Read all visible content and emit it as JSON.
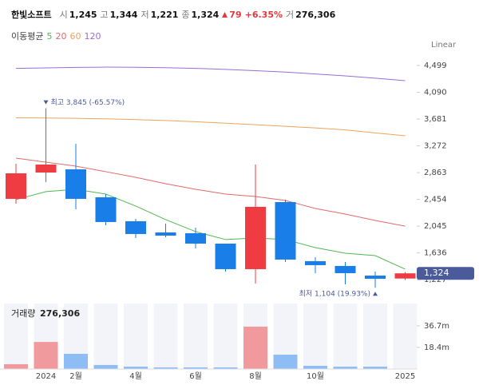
{
  "chart_data": {
    "type": "candlestick",
    "title": "한빛소프트",
    "header_fields": [
      {
        "label": "시",
        "value": "1,245"
      },
      {
        "label": "고",
        "value": "1,344"
      },
      {
        "label": "저",
        "value": "1,221"
      },
      {
        "label": "종",
        "value": "1,324"
      }
    ],
    "change": "79",
    "change_pct": "+6.35%",
    "volume_field": {
      "label": "거",
      "value": "276,306"
    },
    "ma_label": "이동평균",
    "scale_label": "Linear",
    "categories": [
      null,
      "2024",
      "2월",
      null,
      "4월",
      null,
      "6월",
      null,
      "8월",
      null,
      "10월",
      null,
      null,
      "2025"
    ],
    "open": [
      2462,
      2864,
      2913,
      2486,
      2120,
      1949,
      1937,
      1778,
      1388,
      2413,
      1510,
      1437,
      1290,
      1245
    ],
    "high": [
      2998,
      3845,
      3303,
      2535,
      2157,
      2084,
      2022,
      1778,
      2986,
      2449,
      1571,
      1498,
      1351,
      1344
    ],
    "low": [
      2388,
      2718,
      2303,
      2059,
      1864,
      1876,
      1705,
      1351,
      1168,
      1498,
      1327,
      1156,
      1104,
      1221
    ],
    "close": [
      2852,
      2986,
      2462,
      2108,
      1925,
      1900,
      1778,
      1388,
      2340,
      1534,
      1449,
      1327,
      1241,
      1324
    ],
    "up_color": "#ef3b42",
    "down_color": "#1a7ee8",
    "series": [
      {
        "name": "5",
        "color": "#4fb84f",
        "values": [
          2450,
          2572,
          2608,
          2535,
          2352,
          2145,
          1962,
          1840,
          1864,
          1840,
          1717,
          1632,
          1595,
          1388
        ]
      },
      {
        "name": "20",
        "color": "#e26a6a",
        "values": [
          3084,
          3023,
          2962,
          2877,
          2791,
          2693,
          2608,
          2535,
          2498,
          2437,
          2315,
          2230,
          2132,
          2045
        ]
      },
      {
        "name": "60",
        "color": "#f0a35a",
        "values": [
          3700,
          3697,
          3692,
          3684,
          3672,
          3658,
          3640,
          3618,
          3594,
          3570,
          3545,
          3515,
          3470,
          3425
        ]
      },
      {
        "name": "120",
        "color": "#9b6bd6",
        "values": [
          4455,
          4462,
          4470,
          4474,
          4472,
          4466,
          4455,
          4440,
          4420,
          4398,
          4370,
          4340,
          4305,
          4267
        ]
      }
    ],
    "ylim": [
      1046,
      4743
    ],
    "yticks": [
      {
        "value": 4499,
        "label": "4,499"
      },
      {
        "value": 4090,
        "label": "4,090"
      },
      {
        "value": 3681,
        "label": "3,681"
      },
      {
        "value": 3272,
        "label": "3,272"
      },
      {
        "value": 2863,
        "label": "2,863"
      },
      {
        "value": 2454,
        "label": "2,454"
      },
      {
        "value": 2045,
        "label": "2,045"
      },
      {
        "value": 1636,
        "label": "1,636"
      },
      {
        "value": 1227,
        "label": "1,227"
      }
    ],
    "last_price": {
      "value": 1324,
      "label": "1,324"
    },
    "annotations": [
      {
        "text": "최고 3,845 (-65.57%)",
        "index": 1,
        "value": 3845
      },
      {
        "text": "최저 1,104 (19.93%)",
        "index": 12,
        "value": 1104
      }
    ],
    "volume": {
      "label": "거래량",
      "current": "276,306",
      "values": [
        4100000,
        23000000,
        12900000,
        3400000,
        2000000,
        1400000,
        1400000,
        1400000,
        36000000,
        12200000,
        2700000,
        2000000,
        2000000,
        276306
      ],
      "ylim": [
        0,
        55600000
      ],
      "yticks": [
        {
          "value": 36700000,
          "label": "36.7m"
        },
        {
          "value": 18400000,
          "label": "18.4m"
        }
      ]
    }
  }
}
